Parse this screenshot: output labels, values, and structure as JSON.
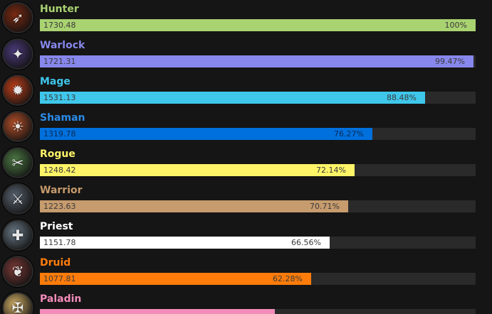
{
  "chart_data": {
    "type": "bar",
    "orientation": "horizontal",
    "categories": [
      "Hunter",
      "Warlock",
      "Mage",
      "Shaman",
      "Rogue",
      "Warrior",
      "Priest",
      "Druid",
      "Paladin"
    ],
    "values": [
      1730.48,
      1721.31,
      1531.13,
      1319.78,
      1248.42,
      1223.63,
      1151.78,
      1077.81,
      null
    ],
    "value_labels": [
      "1730.48",
      "1721.31",
      "1531.13",
      "1319.78",
      "1248.42",
      "1223.63",
      "1151.78",
      "1077.81",
      ""
    ],
    "percent_labels": [
      "100%",
      "99.47%",
      "88.48%",
      "76.27%",
      "72.14%",
      "70.71%",
      "66.56%",
      "62.28%",
      ""
    ],
    "colors": [
      "#a9d271",
      "#8787ed",
      "#3fc7eb",
      "#0070dd",
      "#fff468",
      "#c69b6d",
      "#ffffff",
      "#ff7c0a",
      "#f48cba"
    ],
    "name_colors": [
      "#a9d271",
      "#8787ed",
      "#3fc7eb",
      "#2a8be8",
      "#fff468",
      "#c69b6d",
      "#ffffff",
      "#ff7c0a",
      "#f48cba"
    ],
    "icons": [
      "hunter-icon",
      "warlock-icon",
      "mage-icon",
      "shaman-icon",
      "rogue-icon",
      "warrior-icon",
      "priest-icon",
      "druid-icon",
      "paladin-icon"
    ],
    "icon_colors": [
      "#7a2a12",
      "#4b3a7a",
      "#c2411a",
      "#b4502a",
      "#4e7a45",
      "#5a6470",
      "#6a7a86",
      "#7a3a36",
      "#d9b56a"
    ],
    "max_value": 1730.48,
    "title": "",
    "xlabel": "",
    "ylabel": "",
    "grid": false,
    "legend": "none"
  }
}
